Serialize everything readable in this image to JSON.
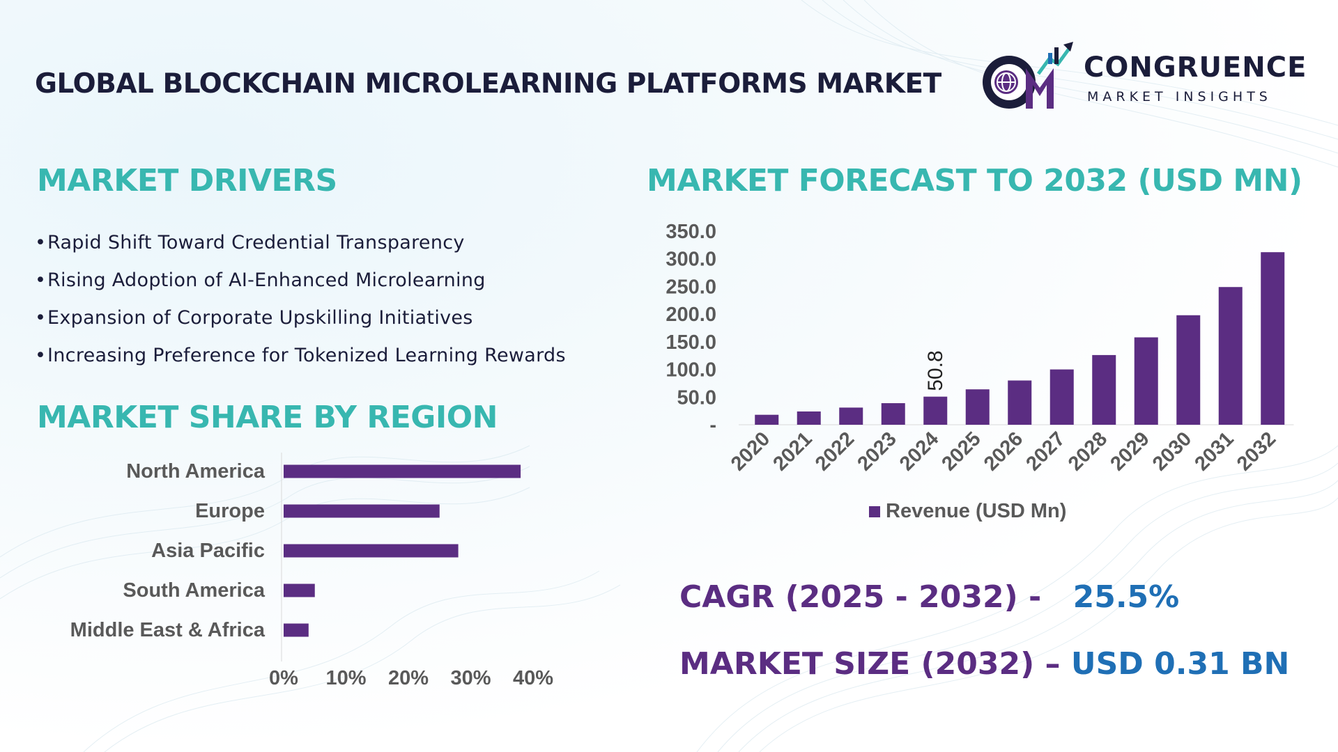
{
  "header": {
    "title": "GLOBAL BLOCKCHAIN MICROLEARNING PLATFORMS MARKET",
    "logo_name": "CONGRUENCE",
    "logo_sub": "MARKET INSIGHTS",
    "logo_monogram": "CM"
  },
  "drivers": {
    "heading": "MARKET DRIVERS",
    "items": [
      "Rapid Shift Toward Credential Transparency",
      "Rising Adoption of AI-Enhanced Microlearning",
      "Expansion of Corporate Upskilling Initiatives",
      "Increasing Preference for Tokenized Learning Rewards"
    ]
  },
  "region": {
    "heading": "MARKET SHARE BY REGION"
  },
  "forecast": {
    "heading": "MARKET FORECAST TO 2032 (USD MN)"
  },
  "kpis": {
    "cagr_label": "CAGR (2025 - 2032) -",
    "cagr_value": "25.5%",
    "size_label": "MARKET SIZE (2032) –",
    "size_value": "USD 0.31 BN"
  },
  "colors": {
    "accent": "#38b7b0",
    "bar": "#5b2d82",
    "text": "#1b1d3a",
    "value": "#1f6fb5",
    "axis_text": "#595959"
  },
  "chart_data": [
    {
      "type": "bar",
      "orientation": "horizontal",
      "categories": [
        "North America",
        "Europe",
        "Asia Pacific",
        "South America",
        "Middle East & Africa"
      ],
      "values": [
        38,
        25,
        28,
        5,
        4
      ],
      "x_ticks": [
        "0%",
        "10%",
        "20%",
        "30%",
        "40%"
      ],
      "xlim": [
        0,
        40
      ]
    },
    {
      "type": "bar",
      "categories": [
        "2020",
        "2021",
        "2022",
        "2023",
        "2024",
        "2025",
        "2026",
        "2027",
        "2028",
        "2029",
        "2030",
        "2031",
        "2032"
      ],
      "series": [
        {
          "name": "Revenue (USD Mn)",
          "values": [
            18,
            24,
            31,
            39,
            50.8,
            64,
            80,
            100,
            126,
            158,
            198,
            249,
            312
          ]
        }
      ],
      "data_labels": [
        {
          "category": "2024",
          "label": "50.8"
        }
      ],
      "y_ticks": [
        "-",
        "50.0",
        "100.0",
        "150.0",
        "200.0",
        "250.0",
        "300.0",
        "350.0"
      ],
      "ylim": [
        0,
        350
      ],
      "legend": "bottom"
    }
  ]
}
